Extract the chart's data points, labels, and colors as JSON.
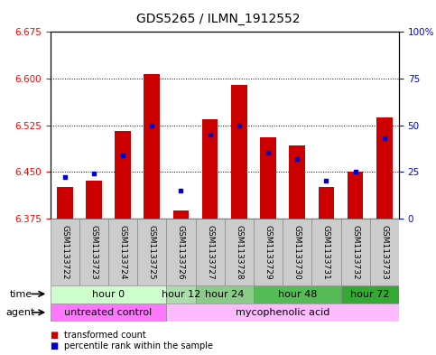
{
  "title": "GDS5265 / ILMN_1912552",
  "samples": [
    "GSM1133722",
    "GSM1133723",
    "GSM1133724",
    "GSM1133725",
    "GSM1133726",
    "GSM1133727",
    "GSM1133728",
    "GSM1133729",
    "GSM1133730",
    "GSM1133731",
    "GSM1133732",
    "GSM1133733"
  ],
  "transformed_count": [
    6.425,
    6.435,
    6.515,
    6.607,
    6.388,
    6.535,
    6.59,
    6.505,
    6.493,
    6.425,
    6.45,
    6.537
  ],
  "percentile_rank": [
    22,
    24,
    34,
    50,
    15,
    45,
    50,
    35,
    32,
    20,
    25,
    43
  ],
  "bar_bottom": 6.375,
  "ylim_left": [
    6.375,
    6.675
  ],
  "ylim_right": [
    0,
    100
  ],
  "yticks_left": [
    6.375,
    6.45,
    6.525,
    6.6,
    6.675
  ],
  "yticks_right": [
    0,
    25,
    50,
    75,
    100
  ],
  "bar_color": "#cc0000",
  "dot_color": "#0000cc",
  "time_groups": [
    {
      "label": "hour 0",
      "start": 0,
      "end": 4,
      "color": "#ccffcc"
    },
    {
      "label": "hour 12",
      "start": 4,
      "end": 5,
      "color": "#aaddaa"
    },
    {
      "label": "hour 24",
      "start": 5,
      "end": 7,
      "color": "#88cc88"
    },
    {
      "label": "hour 48",
      "start": 7,
      "end": 10,
      "color": "#55bb55"
    },
    {
      "label": "hour 72",
      "start": 10,
      "end": 12,
      "color": "#33aa33"
    }
  ],
  "agent_groups": [
    {
      "label": "untreated control",
      "start": 0,
      "end": 4,
      "color": "#ff77ff"
    },
    {
      "label": "mycophenolic acid",
      "start": 4,
      "end": 12,
      "color": "#ffbbff"
    }
  ],
  "bg_color_sample": "#cccccc",
  "title_fontsize": 10,
  "tick_fontsize": 7.5,
  "sample_fontsize": 6.5,
  "row_fontsize": 8
}
